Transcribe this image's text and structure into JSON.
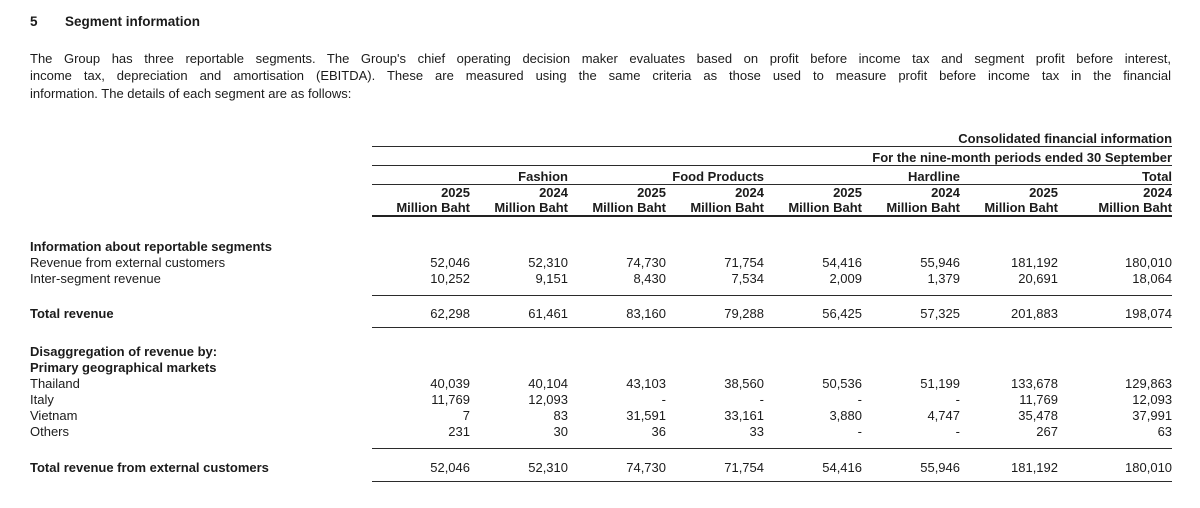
{
  "page": {
    "section_number": "5",
    "section_title": "Segment information",
    "paragraph_lines": [
      "The Group has three reportable segments. The Group's chief operating decision maker evaluates based on profit before income tax and segment profit before interest,",
      "income tax, depreciation and amortisation (EBITDA). These are measured using the same criteria as those used to measure profit before income tax in the financial",
      "information. The details of each segment are as follows:"
    ]
  },
  "table": {
    "caption_line1": "Consolidated financial information",
    "caption_line2": "For the nine-month periods ended 30 September",
    "unit_label": "Million Baht",
    "groups": [
      {
        "label": "Fashion",
        "years": [
          "2025",
          "2024"
        ]
      },
      {
        "label": "Food Products",
        "years": [
          "2025",
          "2024"
        ]
      },
      {
        "label": "Hardline",
        "years": [
          "2025",
          "2024"
        ]
      },
      {
        "label": "Total",
        "years": [
          "2025",
          "2024"
        ]
      }
    ],
    "rows": [
      {
        "type": "section",
        "label": "Information about reportable segments"
      },
      {
        "type": "data",
        "label": "Revenue from external customers",
        "values": [
          "52,046",
          "52,310",
          "74,730",
          "71,754",
          "54,416",
          "55,946",
          "181,192",
          "180,010"
        ]
      },
      {
        "type": "data",
        "label": "Inter-segment revenue",
        "rule_below": true,
        "values": [
          "10,252",
          "9,151",
          "8,430",
          "7,534",
          "2,009",
          "1,379",
          "20,691",
          "18,064"
        ]
      },
      {
        "type": "spacer",
        "h": 9
      },
      {
        "type": "total",
        "label": "Total revenue",
        "rule_below": true,
        "values": [
          "62,298",
          "61,461",
          "83,160",
          "79,288",
          "56,425",
          "57,325",
          "201,883",
          "198,074"
        ]
      },
      {
        "type": "spacer",
        "h": 16
      },
      {
        "type": "section",
        "label": "Disaggregation of revenue by:"
      },
      {
        "type": "section",
        "label": "Primary geographical markets"
      },
      {
        "type": "data",
        "label": "Thailand",
        "values": [
          "40,039",
          "40,104",
          "43,103",
          "38,560",
          "50,536",
          "51,199",
          "133,678",
          "129,863"
        ]
      },
      {
        "type": "data",
        "label": "Italy",
        "values": [
          "11,769",
          "12,093",
          "-",
          "-",
          "-",
          "-",
          "11,769",
          "12,093"
        ]
      },
      {
        "type": "data",
        "label": "Vietnam",
        "values": [
          "7",
          "83",
          "31,591",
          "33,161",
          "3,880",
          "4,747",
          "35,478",
          "37,991"
        ]
      },
      {
        "type": "data",
        "label": "Others",
        "rule_below": true,
        "values": [
          "231",
          "30",
          "36",
          "33",
          "-",
          "-",
          "267",
          "63"
        ]
      },
      {
        "type": "spacer",
        "h": 10
      },
      {
        "type": "total",
        "label": "Total revenue from external customers",
        "rule_below": true,
        "values": [
          "52,046",
          "52,310",
          "74,730",
          "71,754",
          "54,416",
          "55,946",
          "181,192",
          "180,010"
        ]
      }
    ]
  }
}
